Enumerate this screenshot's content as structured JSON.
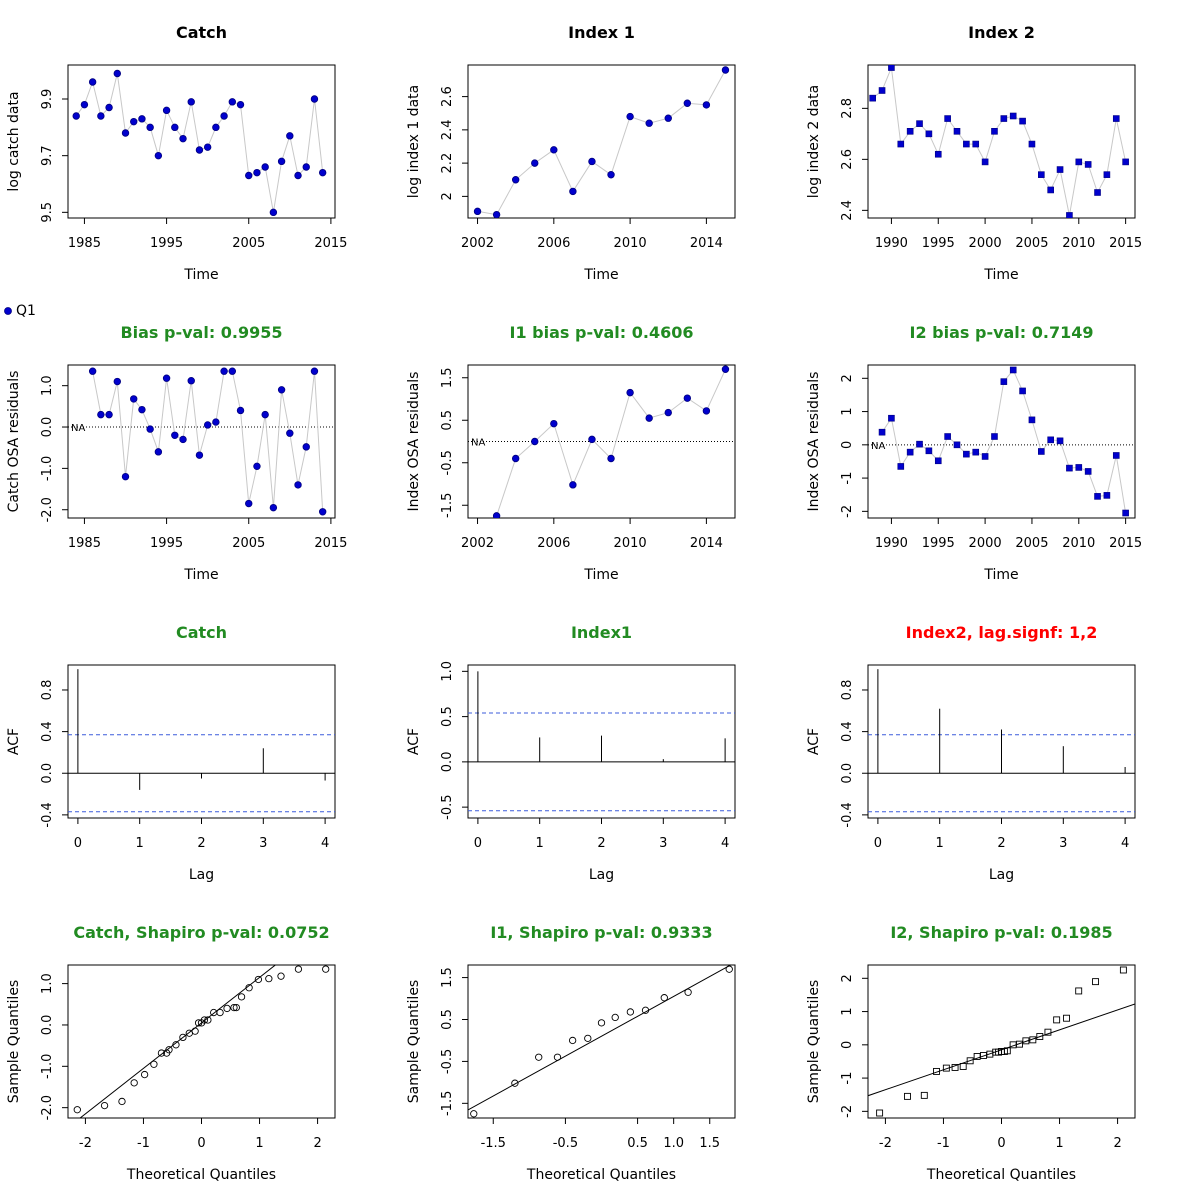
{
  "legend": {
    "marker": "Q1"
  },
  "chart_data": [
    {
      "id": "catch-data",
      "type": "scatter",
      "title": "Catch",
      "title_color": "#000000",
      "xlabel": "Time",
      "ylabel": "log catch data",
      "xlim": [
        1983,
        2015.5
      ],
      "ylim": [
        9.48,
        10.02
      ],
      "xticks": [
        1985,
        1995,
        2005,
        2015
      ],
      "yticks": [
        9.5,
        9.7,
        9.9
      ],
      "marker": "circle",
      "x": [
        1984,
        1985,
        1986,
        1987,
        1988,
        1989,
        1990,
        1991,
        1992,
        1993,
        1994,
        1995,
        1996,
        1997,
        1998,
        1999,
        2000,
        2001,
        2002,
        2003,
        2004,
        2005,
        2006,
        2007,
        2008,
        2009,
        2010,
        2011,
        2012,
        2013,
        2014
      ],
      "y": [
        9.84,
        9.88,
        9.96,
        9.84,
        9.87,
        9.99,
        9.78,
        9.82,
        9.83,
        9.8,
        9.7,
        9.86,
        9.8,
        9.76,
        9.89,
        9.72,
        9.73,
        9.8,
        9.84,
        9.89,
        9.88,
        9.63,
        9.64,
        9.66,
        9.5,
        9.68,
        9.77,
        9.63,
        9.66,
        9.9,
        9.64
      ]
    },
    {
      "id": "index1-data",
      "type": "scatter",
      "title": "Index 1",
      "title_color": "#000000",
      "xlabel": "Time",
      "ylabel": "log index 1 data",
      "xlim": [
        2001.5,
        2015.5
      ],
      "ylim": [
        1.87,
        2.79
      ],
      "xticks": [
        2002,
        2006,
        2010,
        2014
      ],
      "yticks": [
        2.0,
        2.2,
        2.4,
        2.6
      ],
      "marker": "circle",
      "x": [
        2002,
        2003,
        2004,
        2005,
        2006,
        2007,
        2008,
        2009,
        2010,
        2011,
        2012,
        2013,
        2014,
        2015
      ],
      "y": [
        1.91,
        1.89,
        2.1,
        2.2,
        2.28,
        2.03,
        2.21,
        2.13,
        2.48,
        2.44,
        2.47,
        2.56,
        2.55,
        2.76
      ]
    },
    {
      "id": "index2-data",
      "type": "scatter",
      "title": "Index 2",
      "title_color": "#000000",
      "xlabel": "Time",
      "ylabel": "log index 2 data",
      "xlim": [
        1987.5,
        2016
      ],
      "ylim": [
        2.37,
        2.97
      ],
      "xticks": [
        1990,
        1995,
        2000,
        2005,
        2010,
        2015
      ],
      "yticks": [
        2.4,
        2.6,
        2.8
      ],
      "marker": "square",
      "x": [
        1988,
        1989,
        1990,
        1991,
        1992,
        1993,
        1994,
        1995,
        1996,
        1997,
        1998,
        1999,
        2000,
        2001,
        2002,
        2003,
        2004,
        2005,
        2006,
        2007,
        2008,
        2009,
        2010,
        2011,
        2012,
        2013,
        2014,
        2015
      ],
      "y": [
        2.84,
        2.87,
        2.96,
        2.66,
        2.71,
        2.74,
        2.7,
        2.62,
        2.76,
        2.71,
        2.66,
        2.66,
        2.59,
        2.71,
        2.76,
        2.77,
        2.75,
        2.66,
        2.54,
        2.48,
        2.56,
        2.38,
        2.59,
        2.58,
        2.47,
        2.54,
        2.76,
        2.59
      ]
    },
    {
      "id": "catch-resid",
      "type": "scatter",
      "title": "Bias p-val: 0.9955",
      "title_color": "#228B22",
      "xlabel": "Time",
      "ylabel": "Catch OSA residuals",
      "xlim": [
        1983,
        2015.5
      ],
      "ylim": [
        -2.2,
        1.5
      ],
      "xticks": [
        1985,
        1995,
        2005,
        2015
      ],
      "yticks": [
        -2.0,
        -1.0,
        0.0,
        1.0
      ],
      "ytick_labels": [
        "-2.0",
        "-1.0",
        "0.0",
        "1.0"
      ],
      "marker": "circle",
      "zero_line": true,
      "na_label": "NA",
      "x": [
        1986,
        1987,
        1988,
        1989,
        1990,
        1991,
        1992,
        1993,
        1994,
        1995,
        1996,
        1997,
        1998,
        1999,
        2000,
        2001,
        2002,
        2003,
        2004,
        2005,
        2006,
        2007,
        2008,
        2009,
        2010,
        2011,
        2012,
        2013,
        2014
      ],
      "y": [
        1.35,
        0.3,
        0.3,
        1.1,
        -1.2,
        0.68,
        0.42,
        -0.05,
        -0.6,
        1.18,
        -0.2,
        -0.3,
        1.12,
        -0.68,
        0.05,
        0.12,
        1.35,
        1.35,
        0.4,
        -1.85,
        -0.95,
        0.3,
        -1.95,
        0.9,
        -0.15,
        -1.4,
        -0.48,
        1.35,
        -2.05
      ]
    },
    {
      "id": "index1-resid",
      "type": "scatter",
      "title": "I1 bias p-val: 0.4606",
      "title_color": "#228B22",
      "xlabel": "Time",
      "ylabel": "Index OSA residuals",
      "xlim": [
        2001.5,
        2015.5
      ],
      "ylim": [
        -1.8,
        1.8
      ],
      "xticks": [
        2002,
        2006,
        2010,
        2014
      ],
      "yticks": [
        -1.5,
        -0.5,
        0.5,
        1.5
      ],
      "ytick_labels": [
        "-1.5",
        "-0.5",
        "0.5",
        "1.5"
      ],
      "marker": "circle",
      "zero_line": true,
      "na_label": "NA",
      "x": [
        2003,
        2004,
        2005,
        2006,
        2007,
        2008,
        2009,
        2010,
        2011,
        2012,
        2013,
        2014,
        2015
      ],
      "y": [
        -1.75,
        -0.4,
        0.0,
        0.42,
        -1.02,
        0.05,
        -0.4,
        1.15,
        0.55,
        0.68,
        1.02,
        0.72,
        1.7
      ]
    },
    {
      "id": "index2-resid",
      "type": "scatter",
      "title": "I2 bias p-val: 0.7149",
      "title_color": "#228B22",
      "xlabel": "Time",
      "ylabel": "Index OSA residuals",
      "xlim": [
        1987.5,
        2016
      ],
      "ylim": [
        -2.2,
        2.4
      ],
      "xticks": [
        1990,
        1995,
        2000,
        2005,
        2010,
        2015
      ],
      "yticks": [
        -2,
        -1,
        0,
        1,
        2
      ],
      "ytick_labels": [
        "-2",
        "-1",
        "0",
        "1",
        "2"
      ],
      "marker": "square",
      "zero_line": true,
      "na_label": "NA",
      "x": [
        1989,
        1990,
        1991,
        1992,
        1993,
        1994,
        1995,
        1996,
        1997,
        1998,
        1999,
        2000,
        2001,
        2002,
        2003,
        2004,
        2005,
        2006,
        2007,
        2008,
        2009,
        2010,
        2011,
        2012,
        2013,
        2014,
        2015
      ],
      "y": [
        0.38,
        0.8,
        -0.65,
        -0.22,
        0.02,
        -0.18,
        -0.48,
        0.25,
        0.0,
        -0.28,
        -0.22,
        -0.35,
        0.25,
        1.9,
        2.25,
        1.62,
        0.75,
        -0.2,
        0.15,
        0.12,
        -0.7,
        -0.68,
        -0.8,
        -1.55,
        -1.52,
        -0.32,
        -2.05
      ]
    },
    {
      "id": "catch-acf",
      "type": "bar",
      "title": "Catch",
      "title_color": "#228B22",
      "xlabel": "Lag",
      "ylabel": "ACF",
      "xlim": [
        -0.16,
        4.16
      ],
      "ylim": [
        -0.43,
        1.04
      ],
      "xticks": [
        0,
        1,
        2,
        3,
        4
      ],
      "yticks": [
        -0.4,
        0.0,
        0.4,
        0.8
      ],
      "ytick_labels": [
        "-0.4",
        "0.0",
        "0.4",
        "0.8"
      ],
      "lags": [
        0,
        1,
        2,
        3,
        4
      ],
      "values": [
        1.0,
        -0.16,
        -0.05,
        0.24,
        -0.07
      ],
      "conf": 0.37
    },
    {
      "id": "index1-acf",
      "type": "bar",
      "title": "Index1",
      "title_color": "#228B22",
      "xlabel": "Lag",
      "ylabel": "ACF",
      "xlim": [
        -0.16,
        4.16
      ],
      "ylim": [
        -0.62,
        1.07
      ],
      "xticks": [
        0,
        1,
        2,
        3,
        4
      ],
      "yticks": [
        -0.5,
        0.0,
        0.5,
        1.0
      ],
      "ytick_labels": [
        "-0.5",
        "0.0",
        "0.5",
        "1.0"
      ],
      "lags": [
        0,
        1,
        2,
        3,
        4
      ],
      "values": [
        1.0,
        0.27,
        0.29,
        0.03,
        0.26
      ],
      "conf": 0.54
    },
    {
      "id": "index2-acf",
      "type": "bar",
      "title": "Index2, lag.signf: 1,2",
      "title_color": "#FF0000",
      "xlabel": "Lag",
      "ylabel": "ACF",
      "xlim": [
        -0.16,
        4.16
      ],
      "ylim": [
        -0.43,
        1.04
      ],
      "xticks": [
        0,
        1,
        2,
        3,
        4
      ],
      "yticks": [
        -0.4,
        0.0,
        0.4,
        0.8
      ],
      "ytick_labels": [
        "-0.4",
        "0.0",
        "0.4",
        "0.8"
      ],
      "lags": [
        0,
        1,
        2,
        3,
        4
      ],
      "values": [
        1.0,
        0.62,
        0.42,
        0.26,
        0.06
      ],
      "conf": 0.37
    },
    {
      "id": "catch-qq",
      "type": "scatter",
      "title": "Catch, Shapiro p-val: 0.0752",
      "title_color": "#228B22",
      "xlabel": "Theoretical Quantiles",
      "ylabel": "Sample Quantiles",
      "xlim": [
        -2.3,
        2.3
      ],
      "ylim": [
        -2.25,
        1.45
      ],
      "xticks": [
        -2,
        -1,
        0,
        1,
        2
      ],
      "yticks": [
        -2.0,
        -1.0,
        0.0,
        1.0
      ],
      "ytick_labels": [
        "-2.0",
        "-1.0",
        "0.0",
        "1.0"
      ],
      "marker": "open-circle",
      "qqline": {
        "intercept": 0.05,
        "slope": 1.1
      },
      "x": [
        -2.14,
        -1.67,
        -1.37,
        -1.16,
        -0.98,
        -0.82,
        -0.69,
        -0.56,
        -0.44,
        -0.32,
        -0.21,
        -0.11,
        0.0,
        0.11,
        0.21,
        0.32,
        0.44,
        0.56,
        0.69,
        0.82,
        0.98,
        1.16,
        1.37,
        1.67,
        2.14,
        -0.05,
        0.05,
        -0.6,
        0.6
      ],
      "y": [
        -2.05,
        -1.95,
        -1.85,
        -1.4,
        -1.2,
        -0.95,
        -0.68,
        -0.6,
        -0.48,
        -0.3,
        -0.2,
        -0.15,
        0.05,
        0.12,
        0.3,
        0.3,
        0.4,
        0.42,
        0.68,
        0.9,
        1.1,
        1.12,
        1.18,
        1.35,
        1.35,
        0.05,
        0.12,
        -0.68,
        0.42
      ]
    },
    {
      "id": "index1-qq",
      "type": "scatter",
      "title": "I1, Shapiro p-val: 0.9333",
      "title_color": "#228B22",
      "xlabel": "Theoretical Quantiles",
      "ylabel": "Sample Quantiles",
      "xlim": [
        -1.85,
        1.85
      ],
      "ylim": [
        -1.85,
        1.8
      ],
      "xticks": [
        -1.5,
        -0.5,
        0.5,
        1.0,
        1.5
      ],
      "yticks": [
        -1.5,
        -0.5,
        0.5,
        1.5
      ],
      "xtick_labels": [
        "-1.5",
        "-0.5",
        "0.5",
        "1.0",
        "1.5"
      ],
      "ytick_labels": [
        "-1.5",
        "-0.5",
        "0.5",
        "1.5"
      ],
      "marker": "open-circle",
      "qqline": {
        "intercept": 0.1,
        "slope": 0.95
      },
      "x": [
        -1.77,
        -1.2,
        -0.87,
        -0.61,
        -0.4,
        -0.19,
        0.0,
        0.19,
        0.4,
        0.61,
        0.87,
        1.2,
        1.77
      ],
      "y": [
        -1.75,
        -1.02,
        -0.4,
        -0.4,
        0.0,
        0.05,
        0.42,
        0.55,
        0.68,
        0.72,
        1.02,
        1.15,
        1.7
      ]
    },
    {
      "id": "index2-qq",
      "type": "scatter",
      "title": "I2, Shapiro p-val: 0.1985",
      "title_color": "#228B22",
      "xlabel": "Theoretical Quantiles",
      "ylabel": "Sample Quantiles",
      "xlim": [
        -2.3,
        2.3
      ],
      "ylim": [
        -2.2,
        2.4
      ],
      "xticks": [
        -2,
        -1,
        0,
        1,
        2
      ],
      "yticks": [
        -2,
        -1,
        0,
        1,
        2
      ],
      "ytick_labels": [
        "-2",
        "-1",
        "0",
        "1",
        "2"
      ],
      "marker": "open-square",
      "qqline": {
        "intercept": -0.15,
        "slope": 0.6
      },
      "x": [
        -2.1,
        -1.62,
        -1.33,
        -1.12,
        -0.95,
        -0.8,
        -0.66,
        -0.54,
        -0.42,
        -0.31,
        -0.2,
        -0.1,
        0.0,
        0.1,
        0.2,
        0.31,
        0.42,
        0.54,
        0.66,
        0.8,
        0.95,
        1.12,
        1.33,
        1.62,
        2.1,
        -0.05,
        0.05
      ],
      "y": [
        -2.05,
        -1.55,
        -1.52,
        -0.8,
        -0.7,
        -0.68,
        -0.65,
        -0.48,
        -0.35,
        -0.32,
        -0.28,
        -0.22,
        -0.2,
        -0.18,
        0.0,
        0.02,
        0.12,
        0.15,
        0.25,
        0.38,
        0.75,
        0.8,
        1.62,
        1.9,
        2.25,
        -0.22,
        -0.2
      ]
    }
  ]
}
